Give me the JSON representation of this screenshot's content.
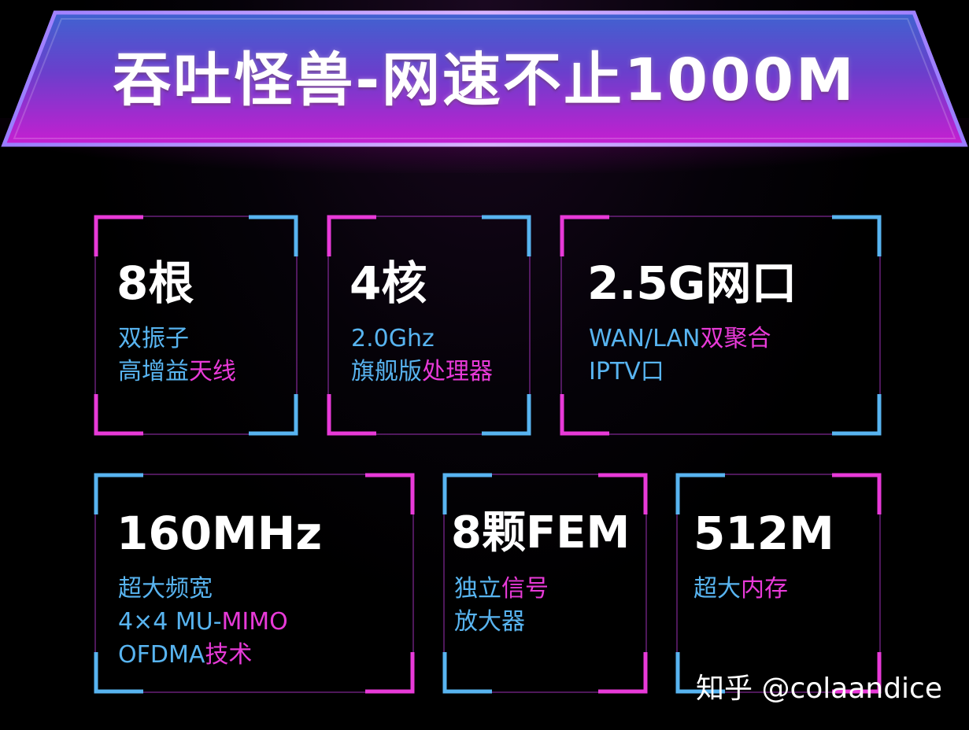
{
  "banner": {
    "title": "吞吐怪兽-网速不止1000M"
  },
  "features": [
    {
      "headline": "8根",
      "lines": [
        [
          {
            "text": "双振子",
            "tone": "blue"
          }
        ],
        [
          {
            "text": "高增益",
            "tone": "blue"
          },
          {
            "text": "天线",
            "tone": "pink"
          }
        ]
      ]
    },
    {
      "headline": "4核",
      "lines": [
        [
          {
            "text": "2.0Ghz",
            "tone": "blue"
          }
        ],
        [
          {
            "text": "旗舰版",
            "tone": "blue"
          },
          {
            "text": "处理器",
            "tone": "pink"
          }
        ]
      ]
    },
    {
      "headline": "2.5G网口",
      "lines": [
        [
          {
            "text": "WAN/LAN",
            "tone": "blue"
          },
          {
            "text": "双聚合",
            "tone": "pink"
          }
        ],
        [
          {
            "text": "IPTV口",
            "tone": "blue"
          }
        ]
      ]
    },
    {
      "headline": "160MHz",
      "lines": [
        [
          {
            "text": "超大频宽",
            "tone": "blue"
          }
        ],
        [
          {
            "text": "4×4 MU-",
            "tone": "blue"
          },
          {
            "text": "MIMO",
            "tone": "pink"
          }
        ],
        [
          {
            "text": "OFDMA",
            "tone": "blue"
          },
          {
            "text": "技术",
            "tone": "pink"
          }
        ]
      ]
    },
    {
      "headline": "8颗FEM",
      "lines": [
        [
          {
            "text": "独立",
            "tone": "blue"
          },
          {
            "text": "信号",
            "tone": "pink"
          }
        ],
        [
          {
            "text": "放大器",
            "tone": "blue"
          }
        ]
      ]
    },
    {
      "headline": "512M",
      "lines": [
        [
          {
            "text": "超大",
            "tone": "blue"
          },
          {
            "text": "内存",
            "tone": "pink"
          }
        ]
      ]
    }
  ],
  "watermark": "知乎 @colaandice",
  "colors": {
    "background": "#000000",
    "accent_blue": "#58b4f0",
    "accent_pink": "#e83ad8",
    "banner_top": "#4a6fd8",
    "banner_bottom": "#c81ad0"
  }
}
